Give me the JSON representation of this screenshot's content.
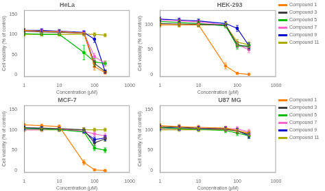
{
  "chart_data": [
    {
      "type": "line",
      "title": "HeLa",
      "xlabel": "Concentration (μM)",
      "ylabel": "Cell viability (% of control)",
      "log": "x",
      "grid": false,
      "marker": "circle",
      "xlim": [
        1,
        1000
      ],
      "xticks": [
        1,
        10,
        100,
        1000
      ],
      "ylim": [
        -5,
        160
      ],
      "yticks": [
        0,
        50,
        100,
        150
      ],
      "x": [
        1,
        3.16,
        10,
        50,
        100,
        200
      ],
      "series": [
        {
          "name": "Compound 1",
          "color": "#FF8000",
          "values": [
            110,
            108,
            107,
            103,
            20,
            5
          ],
          "yerr": [
            4,
            4,
            4,
            4,
            8,
            3
          ]
        },
        {
          "name": "Compound 3",
          "color": "#404040",
          "values": [
            108,
            106,
            105,
            103,
            28,
            8
          ],
          "yerr": [
            4,
            4,
            4,
            4,
            8,
            3
          ]
        },
        {
          "name": "Compound 5",
          "color": "#00BB00",
          "values": [
            102,
            100,
            100,
            55,
            32,
            28
          ],
          "yerr": [
            4,
            4,
            4,
            18,
            8,
            6
          ]
        },
        {
          "name": "Compound 7",
          "color": "#FF66CC",
          "values": [
            108,
            107,
            105,
            103,
            45,
            28
          ],
          "yerr": [
            4,
            4,
            4,
            4,
            8,
            6
          ]
        },
        {
          "name": "Compound 9",
          "color": "#0000CC",
          "values": [
            110,
            110,
            108,
            105,
            88,
            8
          ],
          "yerr": [
            4,
            4,
            4,
            4,
            8,
            4
          ]
        },
        {
          "name": "Compound 11",
          "color": "#AAAA00",
          "values": [
            100,
            100,
            100,
            100,
            100,
            98
          ],
          "yerr": [
            4,
            4,
            4,
            4,
            4,
            4
          ]
        }
      ]
    },
    {
      "type": "line",
      "title": "HEK-293",
      "xlabel": "Concentration (μM)",
      "ylabel": "Cell viability (% of control)",
      "log": "x",
      "grid": false,
      "marker": "circle",
      "legend": "right",
      "xlim": [
        1,
        1000
      ],
      "xticks": [
        1,
        10,
        100,
        1000
      ],
      "ylim": [
        -5,
        130
      ],
      "yticks": [
        0,
        50,
        100
      ],
      "x": [
        1,
        3.16,
        10,
        50,
        100,
        200
      ],
      "series": [
        {
          "name": "Compound 1",
          "color": "#FF8000",
          "values": [
            100,
            100,
            100,
            17,
            2,
            0
          ],
          "yerr": [
            4,
            4,
            4,
            6,
            2,
            1
          ]
        },
        {
          "name": "Compound 3",
          "color": "#404040",
          "values": [
            103,
            102,
            101,
            100,
            60,
            55
          ],
          "yerr": [
            4,
            4,
            4,
            4,
            6,
            6
          ]
        },
        {
          "name": "Compound 5",
          "color": "#00BB00",
          "values": [
            107,
            105,
            103,
            98,
            57,
            58
          ],
          "yerr": [
            4,
            4,
            4,
            4,
            6,
            6
          ]
        },
        {
          "name": "Compound 7",
          "color": "#FF66CC",
          "values": [
            110,
            108,
            106,
            100,
            60,
            50
          ],
          "yerr": [
            4,
            4,
            4,
            4,
            6,
            6
          ]
        },
        {
          "name": "Compound 9",
          "color": "#0000CC",
          "values": [
            112,
            110,
            108,
            103,
            93,
            58
          ],
          "yerr": [
            4,
            4,
            4,
            4,
            6,
            6
          ]
        },
        {
          "name": "Compound 11",
          "color": "#AAAA00",
          "values": [
            100,
            100,
            100,
            100,
            65,
            60
          ],
          "yerr": [
            4,
            4,
            4,
            4,
            6,
            6
          ]
        }
      ]
    },
    {
      "type": "line",
      "title": "MCF-7",
      "xlabel": "Concentration (μM)",
      "ylabel": "Cell viability (% of control)",
      "log": "x",
      "grid": false,
      "marker": "circle",
      "xlim": [
        1,
        1000
      ],
      "xticks": [
        1,
        10,
        100,
        1000
      ],
      "ylim": [
        -5,
        160
      ],
      "yticks": [
        0,
        50,
        100,
        150
      ],
      "x": [
        1,
        3.16,
        10,
        50,
        100,
        200
      ],
      "series": [
        {
          "name": "Compound 1",
          "color": "#FF8000",
          "values": [
            112,
            110,
            108,
            20,
            2,
            0
          ],
          "yerr": [
            4,
            4,
            4,
            6,
            2,
            1
          ]
        },
        {
          "name": "Compound 3",
          "color": "#404040",
          "values": [
            105,
            104,
            103,
            100,
            68,
            78
          ],
          "yerr": [
            4,
            4,
            4,
            5,
            6,
            6
          ]
        },
        {
          "name": "Compound 5",
          "color": "#00BB00",
          "values": [
            103,
            102,
            100,
            95,
            55,
            50
          ],
          "yerr": [
            4,
            4,
            4,
            4,
            6,
            6
          ]
        },
        {
          "name": "Compound 7",
          "color": "#FF66CC",
          "values": [
            100,
            100,
            102,
            96,
            90,
            85
          ],
          "yerr": [
            4,
            4,
            4,
            4,
            6,
            6
          ]
        },
        {
          "name": "Compound 9",
          "color": "#0000CC",
          "values": [
            105,
            103,
            101,
            96,
            76,
            80
          ],
          "yerr": [
            4,
            4,
            4,
            4,
            6,
            6
          ]
        },
        {
          "name": "Compound 11",
          "color": "#AAAA00",
          "values": [
            100,
            100,
            100,
            100,
            100,
            100
          ],
          "yerr": [
            4,
            4,
            4,
            4,
            4,
            4
          ]
        }
      ]
    },
    {
      "type": "line",
      "title": "U87 MG",
      "xlabel": "Concentration (μM)",
      "ylabel": "Cell viability (% of control)",
      "log": "x",
      "grid": false,
      "marker": "circle",
      "legend": "right",
      "xlim": [
        1,
        1000
      ],
      "xticks": [
        1,
        10,
        100,
        1000
      ],
      "ylim": [
        -5,
        160
      ],
      "yticks": [
        0,
        50,
        100,
        150
      ],
      "x": [
        1,
        3.16,
        10,
        50,
        100,
        200
      ],
      "series": [
        {
          "name": "Compound 1",
          "color": "#FF8000",
          "values": [
            110,
            108,
            106,
            104,
            98,
            92
          ],
          "yerr": [
            5,
            5,
            5,
            5,
            6,
            6
          ]
        },
        {
          "name": "Compound 3",
          "color": "#404040",
          "values": [
            108,
            106,
            104,
            102,
            97,
            88
          ],
          "yerr": [
            5,
            5,
            5,
            5,
            6,
            6
          ]
        },
        {
          "name": "Compound 5",
          "color": "#00BB00",
          "values": [
            105,
            103,
            101,
            98,
            92,
            85
          ],
          "yerr": [
            5,
            5,
            5,
            5,
            6,
            6
          ]
        },
        {
          "name": "Compound 7",
          "color": "#FF66CC",
          "values": [
            103,
            103,
            103,
            103,
            102,
            95
          ],
          "yerr": [
            5,
            5,
            5,
            5,
            6,
            6
          ]
        },
        {
          "name": "Compound 9",
          "color": "#0000CC",
          "values": [
            105,
            104,
            103,
            102,
            98,
            85
          ],
          "yerr": [
            5,
            5,
            5,
            5,
            6,
            6
          ]
        },
        {
          "name": "Compound 11",
          "color": "#AAAA00",
          "values": [
            100,
            100,
            100,
            100,
            97,
            90
          ],
          "yerr": [
            4,
            4,
            4,
            4,
            5,
            5
          ]
        }
      ]
    }
  ]
}
